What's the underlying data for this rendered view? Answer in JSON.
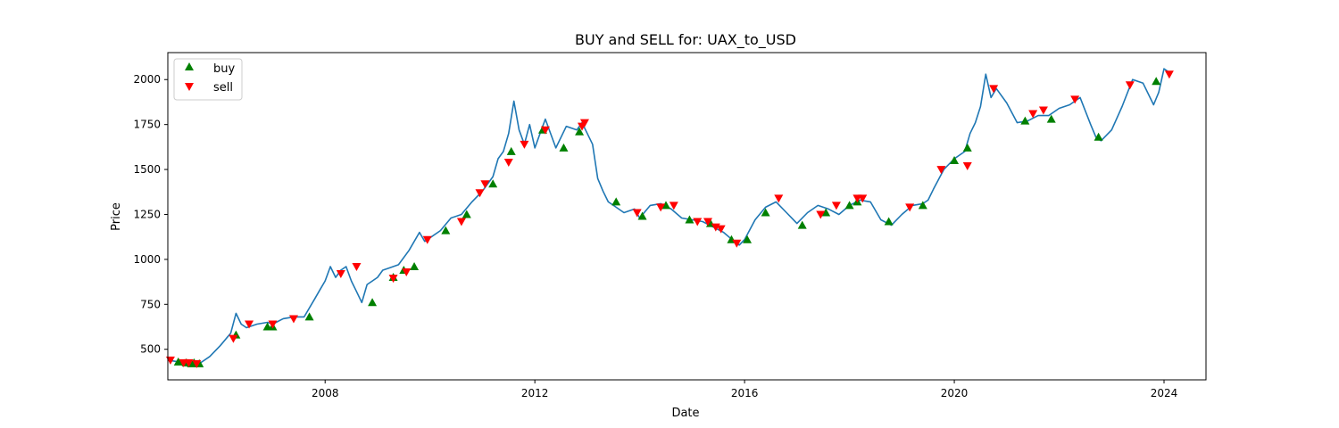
{
  "chart_data": {
    "type": "line",
    "title": "BUY and SELL for: UAX_to_USD",
    "xlabel": "Date",
    "ylabel": "Price",
    "xlim": [
      2005.0,
      2024.8
    ],
    "ylim": [
      330,
      2150
    ],
    "x_ticks": [
      2008,
      2012,
      2016,
      2020,
      2024
    ],
    "x_tick_labels": [
      "2008",
      "2012",
      "2016",
      "2020",
      "2024"
    ],
    "y_ticks": [
      500,
      750,
      1000,
      1250,
      1500,
      1750,
      2000
    ],
    "y_tick_labels": [
      "500",
      "750",
      "1000",
      "1250",
      "1500",
      "1750",
      "2000"
    ],
    "grid": false,
    "legend_position": "top-left",
    "series": [
      {
        "name": "price",
        "color": "#1f77b4",
        "x": [
          2005.0,
          2005.2,
          2005.4,
          2005.6,
          2005.8,
          2006.0,
          2006.2,
          2006.3,
          2006.4,
          2006.5,
          2006.7,
          2006.9,
          2007.0,
          2007.2,
          2007.4,
          2007.6,
          2007.8,
          2007.9,
          2008.0,
          2008.1,
          2008.2,
          2008.3,
          2008.4,
          2008.5,
          2008.6,
          2008.7,
          2008.8,
          2008.9,
          2009.0,
          2009.1,
          2009.2,
          2009.4,
          2009.6,
          2009.8,
          2009.9,
          2010.0,
          2010.2,
          2010.4,
          2010.6,
          2010.8,
          2011.0,
          2011.2,
          2011.3,
          2011.4,
          2011.5,
          2011.6,
          2011.7,
          2011.8,
          2011.9,
          2012.0,
          2012.1,
          2012.2,
          2012.4,
          2012.6,
          2012.8,
          2012.9,
          2013.0,
          2013.1,
          2013.2,
          2013.3,
          2013.4,
          2013.5,
          2013.7,
          2013.9,
          2014.0,
          2014.2,
          2014.4,
          2014.6,
          2014.8,
          2015.0,
          2015.2,
          2015.4,
          2015.6,
          2015.8,
          2015.9,
          2016.0,
          2016.2,
          2016.4,
          2016.6,
          2016.8,
          2017.0,
          2017.2,
          2017.4,
          2017.6,
          2017.8,
          2018.0,
          2018.2,
          2018.4,
          2018.6,
          2018.8,
          2019.0,
          2019.2,
          2019.4,
          2019.5,
          2019.6,
          2019.8,
          2020.0,
          2020.2,
          2020.3,
          2020.4,
          2020.5,
          2020.6,
          2020.7,
          2020.8,
          2021.0,
          2021.2,
          2021.4,
          2021.6,
          2021.8,
          2022.0,
          2022.2,
          2022.4,
          2022.6,
          2022.7,
          2022.8,
          2023.0,
          2023.2,
          2023.4,
          2023.6,
          2023.8,
          2023.9,
          2024.0,
          2024.1
        ],
        "y": [
          440,
          430,
          425,
          420,
          460,
          520,
          590,
          700,
          640,
          620,
          640,
          650,
          640,
          670,
          680,
          680,
          780,
          830,
          880,
          960,
          900,
          940,
          960,
          880,
          820,
          760,
          860,
          880,
          900,
          940,
          950,
          970,
          1050,
          1150,
          1100,
          1120,
          1160,
          1230,
          1250,
          1320,
          1380,
          1460,
          1560,
          1600,
          1700,
          1880,
          1720,
          1640,
          1750,
          1620,
          1700,
          1780,
          1620,
          1740,
          1720,
          1760,
          1700,
          1640,
          1450,
          1380,
          1320,
          1300,
          1260,
          1280,
          1230,
          1300,
          1310,
          1280,
          1230,
          1220,
          1210,
          1180,
          1150,
          1100,
          1080,
          1110,
          1220,
          1290,
          1320,
          1260,
          1200,
          1260,
          1300,
          1280,
          1250,
          1300,
          1330,
          1320,
          1220,
          1190,
          1250,
          1300,
          1310,
          1330,
          1390,
          1500,
          1560,
          1600,
          1700,
          1760,
          1850,
          2030,
          1900,
          1950,
          1870,
          1760,
          1770,
          1800,
          1800,
          1840,
          1860,
          1900,
          1750,
          1680,
          1660,
          1720,
          1850,
          2000,
          1980,
          1860,
          1930,
          2060,
          2040
        ]
      }
    ],
    "buy": {
      "label": "buy",
      "color": "#008000",
      "x": [
        2005.2,
        2005.35,
        2005.45,
        2005.5,
        2005.6,
        2006.3,
        2006.9,
        2007.0,
        2007.7,
        2008.9,
        2009.3,
        2009.5,
        2009.7,
        2010.3,
        2010.7,
        2011.2,
        2011.55,
        2012.15,
        2012.55,
        2012.85,
        2013.55,
        2014.05,
        2014.5,
        2014.95,
        2015.35,
        2015.75,
        2016.05,
        2016.4,
        2017.1,
        2017.55,
        2018.0,
        2018.15,
        2018.75,
        2019.4,
        2020.0,
        2020.25,
        2021.35,
        2021.85,
        2022.75,
        2023.85
      ],
      "y": [
        430,
        425,
        420,
        425,
        420,
        580,
        625,
        625,
        680,
        760,
        900,
        940,
        960,
        1160,
        1250,
        1420,
        1600,
        1720,
        1620,
        1710,
        1320,
        1240,
        1300,
        1220,
        1200,
        1110,
        1110,
        1260,
        1190,
        1260,
        1300,
        1320,
        1210,
        1300,
        1550,
        1620,
        1770,
        1780,
        1680,
        1990
      ]
    },
    "sell": {
      "label": "sell",
      "color": "#ff0000",
      "x": [
        2005.05,
        2005.3,
        2005.4,
        2005.55,
        2006.25,
        2006.55,
        2007.0,
        2007.4,
        2008.3,
        2008.6,
        2009.3,
        2009.55,
        2009.95,
        2010.6,
        2010.95,
        2011.05,
        2011.5,
        2011.8,
        2012.2,
        2012.9,
        2012.95,
        2013.95,
        2014.4,
        2014.65,
        2015.1,
        2015.3,
        2015.45,
        2015.55,
        2015.85,
        2016.65,
        2017.45,
        2017.75,
        2018.15,
        2018.25,
        2019.15,
        2019.75,
        2020.25,
        2020.75,
        2021.5,
        2021.7,
        2022.3,
        2023.35,
        2024.1
      ],
      "y": [
        440,
        425,
        425,
        420,
        560,
        640,
        640,
        670,
        920,
        960,
        895,
        930,
        1110,
        1210,
        1370,
        1420,
        1540,
        1640,
        1720,
        1740,
        1760,
        1260,
        1290,
        1300,
        1210,
        1210,
        1180,
        1170,
        1090,
        1340,
        1250,
        1300,
        1340,
        1340,
        1290,
        1500,
        1520,
        1950,
        1810,
        1830,
        1890,
        1970,
        2030
      ]
    }
  }
}
